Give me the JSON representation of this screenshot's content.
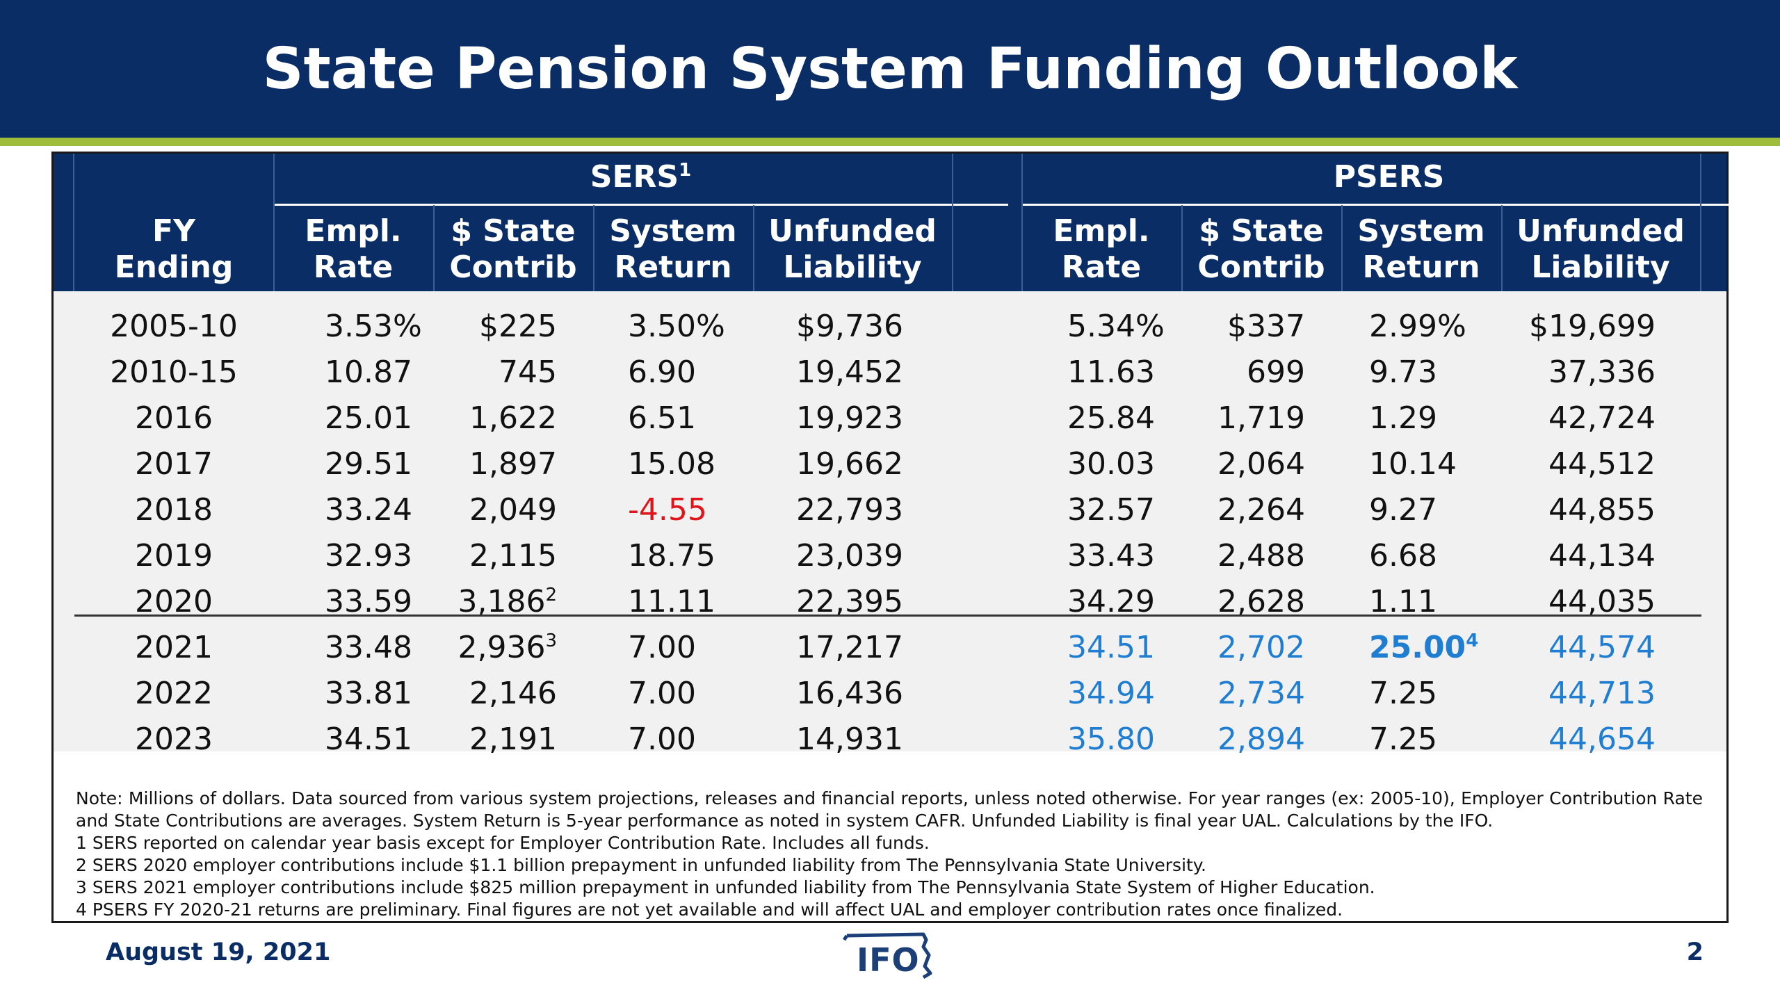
{
  "title": "State Pension System Funding Outlook",
  "table": {
    "groups": [
      {
        "label": "SERS",
        "sup": "1"
      },
      {
        "label": "PSERS",
        "sup": ""
      }
    ],
    "columns": {
      "fy": [
        "FY",
        "Ending"
      ],
      "empl_rate": [
        "Empl.",
        "Rate"
      ],
      "state_contrib": [
        "$ State",
        "Contrib"
      ],
      "system_return": [
        "System",
        "Return"
      ],
      "unfunded": [
        "Unfunded",
        "Liability"
      ]
    },
    "rows": [
      {
        "fy": "2005-10",
        "sers": {
          "rate": "3.53%",
          "contrib": "$225",
          "contrib_sup": "",
          "ret": "3.50%",
          "ual": "$9,736"
        },
        "psers": {
          "rate": "5.34%",
          "contrib": "$337",
          "ret": "2.99%",
          "ret_sup": "",
          "ual": "$19,699"
        }
      },
      {
        "fy": "2010-15",
        "sers": {
          "rate": "10.87",
          "contrib": "745",
          "contrib_sup": "",
          "ret": "6.90",
          "ual": "19,452"
        },
        "psers": {
          "rate": "11.63",
          "contrib": "699",
          "ret": "9.73",
          "ret_sup": "",
          "ual": "37,336"
        }
      },
      {
        "fy": "2016",
        "sers": {
          "rate": "25.01",
          "contrib": "1,622",
          "contrib_sup": "",
          "ret": "6.51",
          "ual": "19,923"
        },
        "psers": {
          "rate": "25.84",
          "contrib": "1,719",
          "ret": "1.29",
          "ret_sup": "",
          "ual": "42,724"
        }
      },
      {
        "fy": "2017",
        "sers": {
          "rate": "29.51",
          "contrib": "1,897",
          "contrib_sup": "",
          "ret": "15.08",
          "ual": "19,662"
        },
        "psers": {
          "rate": "30.03",
          "contrib": "2,064",
          "ret": "10.14",
          "ret_sup": "",
          "ual": "44,512"
        }
      },
      {
        "fy": "2018",
        "sers": {
          "rate": "33.24",
          "contrib": "2,049",
          "contrib_sup": "",
          "ret": "-4.55",
          "ual": "22,793"
        },
        "psers": {
          "rate": "32.57",
          "contrib": "2,264",
          "ret": "9.27",
          "ret_sup": "",
          "ual": "44,855"
        }
      },
      {
        "fy": "2019",
        "sers": {
          "rate": "32.93",
          "contrib": "2,115",
          "contrib_sup": "",
          "ret": "18.75",
          "ual": "23,039"
        },
        "psers": {
          "rate": "33.43",
          "contrib": "2,488",
          "ret": "6.68",
          "ret_sup": "",
          "ual": "44,134"
        }
      },
      {
        "fy": "2020",
        "sers": {
          "rate": "33.59",
          "contrib": "3,186",
          "contrib_sup": "2",
          "ret": "11.11",
          "ual": "22,395"
        },
        "psers": {
          "rate": "34.29",
          "contrib": "2,628",
          "ret": "1.11",
          "ret_sup": "",
          "ual": "44,035"
        }
      },
      {
        "fy": "2021",
        "sers": {
          "rate": "33.48",
          "contrib": "2,936",
          "contrib_sup": "3",
          "ret": "7.00",
          "ual": "17,217"
        },
        "psers": {
          "rate": "34.51",
          "contrib": "2,702",
          "ret": "25.00",
          "ret_sup": "4",
          "ual": "44,574"
        }
      },
      {
        "fy": "2022",
        "sers": {
          "rate": "33.81",
          "contrib": "2,146",
          "contrib_sup": "",
          "ret": "7.00",
          "ual": "16,436"
        },
        "psers": {
          "rate": "34.94",
          "contrib": "2,734",
          "ret": "7.25",
          "ret_sup": "",
          "ual": "44,713"
        }
      },
      {
        "fy": "2023",
        "sers": {
          "rate": "34.51",
          "contrib": "2,191",
          "contrib_sup": "",
          "ret": "7.00",
          "ual": "14,931"
        },
        "psers": {
          "rate": "35.80",
          "contrib": "2,894",
          "ret": "7.25",
          "ret_sup": "",
          "ual": "44,654"
        }
      }
    ]
  },
  "colors": {
    "header_bg": "#0a2d66",
    "accent_green": "#9ebd3a",
    "negative_red": "#e0141b",
    "projection_blue": "#1f7ed1",
    "table_bg": "#f1f1f1"
  },
  "notes": [
    "Note: Millions of dollars. Data sourced from various system projections, releases and financial reports, unless noted otherwise. For year ranges (ex: 2005-10), Employer Contribution Rate and State Contributions are averages. System Return is 5-year performance as noted in system CAFR. Unfunded Liability is final year UAL. Calculations by the IFO.",
    "1 SERS reported on calendar year basis except for Employer Contribution Rate. Includes all funds.",
    "2 SERS 2020 employer contributions include $1.1 billion prepayment in unfunded liability from The Pennsylvania State University.",
    "3 SERS 2021 employer contributions include $825 million prepayment in unfunded liability from The Pennsylvania State System of Higher Education.",
    "4 PSERS FY 2020-21 returns are preliminary. Final figures are not yet available and will affect UAL and employer contribution rates once finalized."
  ],
  "footer": {
    "date": "August 19, 2021",
    "page": "2",
    "logo_text": "IFO"
  }
}
